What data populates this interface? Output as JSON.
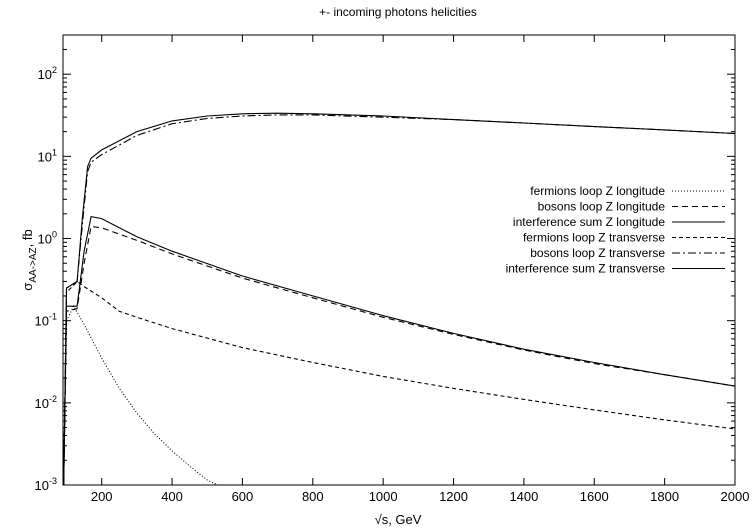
{
  "chart_data": {
    "type": "line",
    "title": "+- incoming photons helicities",
    "xlabel": "√s, GeV",
    "ylabel": "σ",
    "ylabel_sub": "AA->AZ",
    "ylabel_suffix": ", fb",
    "x_scale": "linear",
    "y_scale": "log",
    "xlim": [
      90,
      2000
    ],
    "ylim": [
      0.001,
      300
    ],
    "x_ticks": [
      200,
      400,
      600,
      800,
      1000,
      1200,
      1400,
      1600,
      1800,
      2000
    ],
    "y_ticks": [
      {
        "value": 0.001,
        "mantissa": "10",
        "exp": "-3"
      },
      {
        "value": 0.01,
        "mantissa": "10",
        "exp": "-2"
      },
      {
        "value": 0.1,
        "mantissa": "10",
        "exp": "-1"
      },
      {
        "value": 1,
        "mantissa": "10",
        "exp": "0"
      },
      {
        "value": 10,
        "mantissa": "10",
        "exp": "1"
      },
      {
        "value": 100,
        "mantissa": "10",
        "exp": "2"
      }
    ],
    "grid": false,
    "legend_position": "right",
    "series": [
      {
        "name": "fermions loop Z longitude",
        "dash": "1,2",
        "x": [
          92,
          100,
          120,
          150,
          200,
          250,
          300,
          350,
          400,
          450,
          500,
          530
        ],
        "y": [
          0.0015,
          0.1,
          0.15,
          0.09,
          0.035,
          0.015,
          0.0075,
          0.0042,
          0.0026,
          0.0017,
          0.00115,
          0.001
        ]
      },
      {
        "name": "bosons loop Z longitude",
        "dash": "6,4",
        "x": [
          92,
          100,
          130,
          150,
          170,
          200,
          300,
          400,
          600,
          800,
          1000,
          1200,
          1400,
          1600,
          1800,
          2000
        ],
        "y": [
          0.001,
          0.13,
          0.14,
          0.5,
          1.4,
          1.35,
          0.95,
          0.65,
          0.33,
          0.19,
          0.11,
          0.068,
          0.044,
          0.03,
          0.022,
          0.016
        ]
      },
      {
        "name": "interference sum Z longitude",
        "dash": "none",
        "x": [
          92,
          100,
          130,
          150,
          170,
          200,
          300,
          400,
          600,
          800,
          1000,
          1200,
          1400,
          1600,
          1800,
          2000
        ],
        "y": [
          0.001,
          0.15,
          0.15,
          0.7,
          1.85,
          1.75,
          1.05,
          0.7,
          0.35,
          0.2,
          0.115,
          0.07,
          0.045,
          0.031,
          0.022,
          0.016
        ]
      },
      {
        "name": "fermions loop Z transverse",
        "dash": "4,3",
        "x": [
          92,
          100,
          130,
          150,
          200,
          250,
          300,
          400,
          600,
          800,
          1000,
          1200,
          1400,
          1600,
          1800,
          2000
        ],
        "y": [
          0.0012,
          0.22,
          0.3,
          0.26,
          0.19,
          0.13,
          0.11,
          0.08,
          0.047,
          0.031,
          0.021,
          0.015,
          0.011,
          0.0082,
          0.0062,
          0.0048
        ]
      },
      {
        "name": "bosons loop Z transverse",
        "dash": "8,3,2,3",
        "x": [
          92,
          100,
          130,
          145,
          160,
          170,
          200,
          300,
          400,
          500,
          600,
          700,
          800,
          1000,
          1200,
          1400,
          1600,
          1800,
          2000
        ],
        "y": [
          0.001,
          0.25,
          0.3,
          1.5,
          6.5,
          8.5,
          10.5,
          18,
          25,
          29,
          31,
          32,
          32,
          30,
          28,
          25.5,
          23,
          21,
          19
        ]
      },
      {
        "name": "interference sum Z transverse",
        "dash": "none",
        "x": [
          92,
          100,
          130,
          145,
          160,
          170,
          200,
          300,
          400,
          500,
          600,
          700,
          800,
          1000,
          1200,
          1400,
          1600,
          1800,
          2000
        ],
        "y": [
          0.001,
          0.25,
          0.3,
          1.8,
          7.5,
          9.5,
          12,
          20,
          27,
          31,
          33,
          33.5,
          33,
          31,
          28,
          25.5,
          23,
          21,
          19
        ]
      }
    ]
  }
}
